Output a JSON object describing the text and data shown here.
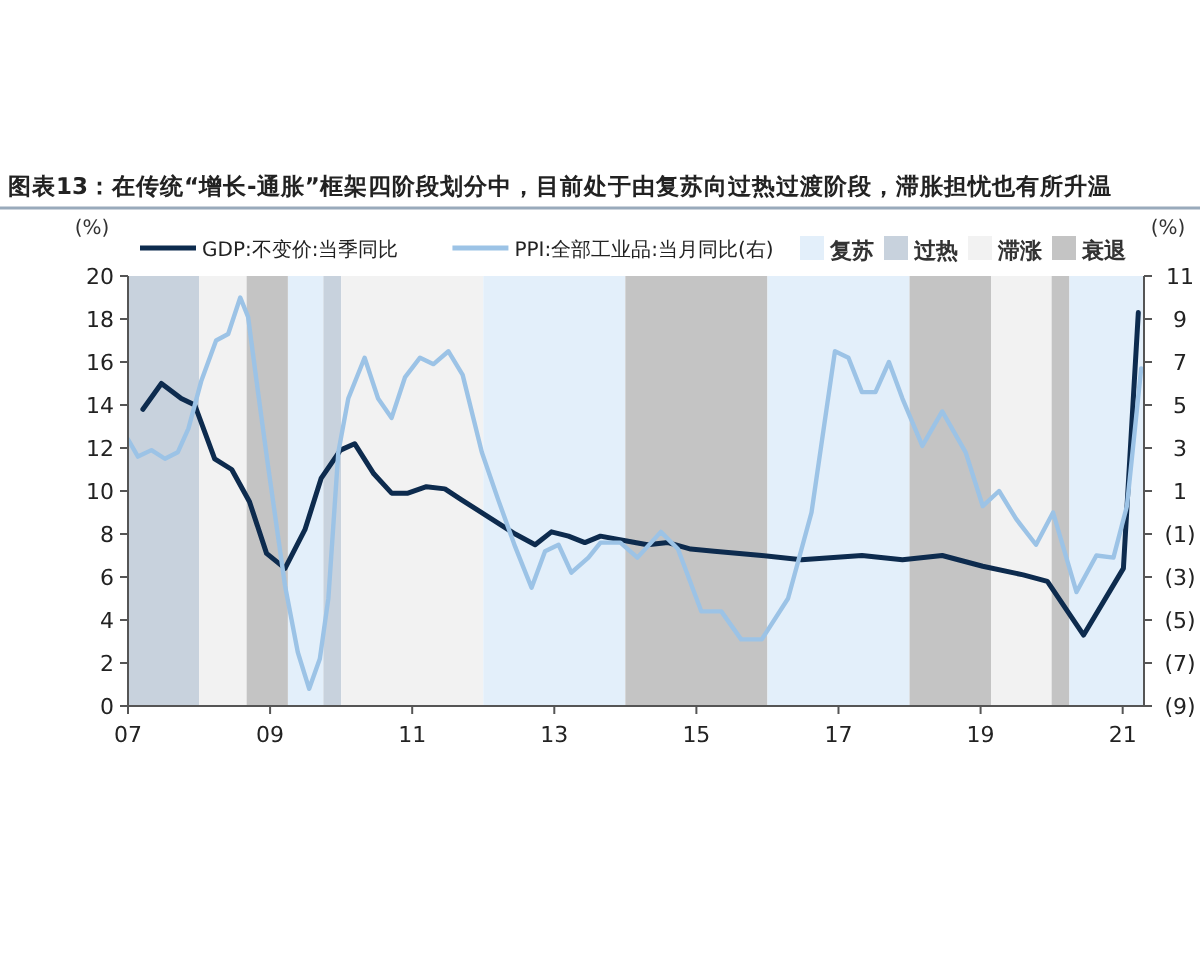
{
  "chart_data": {
    "type": "line",
    "title": "图表13：在传统“增长-通胀”框架四阶段划分中，目前处于由复苏向过热过渡阶段，滞胀担忧也有所升温",
    "ylabel": "(%)",
    "y2label": "(%)",
    "legend": "top",
    "grid": false,
    "xlim": [
      2007,
      2021.3
    ],
    "xticks": [
      {
        "value": 2007,
        "label": "07"
      },
      {
        "value": 2009,
        "label": "09"
      },
      {
        "value": 2011,
        "label": "11"
      },
      {
        "value": 2013,
        "label": "13"
      },
      {
        "value": 2015,
        "label": "15"
      },
      {
        "value": 2017,
        "label": "17"
      },
      {
        "value": 2019,
        "label": "19"
      },
      {
        "value": 2021,
        "label": "21"
      }
    ],
    "ylim": [
      0,
      20
    ],
    "yticks": [
      0,
      2,
      4,
      6,
      8,
      10,
      12,
      14,
      16,
      18,
      20
    ],
    "y2lim": [
      -9,
      11
    ],
    "y2ticks": [
      {
        "value": -9,
        "label": "(9)"
      },
      {
        "value": -7,
        "label": "(7)"
      },
      {
        "value": -5,
        "label": "(5)"
      },
      {
        "value": -3,
        "label": "(3)"
      },
      {
        "value": -1,
        "label": "(1)"
      },
      1,
      3,
      5,
      7,
      9,
      11
    ],
    "series": [
      {
        "name": "GDP:不变价:当季同比",
        "color": "#0d2b4e",
        "x": [
          2007.21,
          2007.47,
          2007.75,
          2007.94,
          2008.22,
          2008.46,
          2008.71,
          2008.95,
          2009.21,
          2009.49,
          2009.72,
          2009.99,
          2010.19,
          2010.46,
          2010.71,
          2010.94,
          2011.2,
          2011.46,
          2011.69,
          2012.45,
          2012.73,
          2012.96,
          2013.2,
          2013.43,
          2013.65,
          2013.98,
          2014.31,
          2014.6,
          2014.92,
          2015.25,
          2015.92,
          2016.48,
          2017.33,
          2017.9,
          2018.46,
          2019.03,
          2019.6,
          2019.94,
          2020.45,
          2021.01,
          2021.22
        ],
        "values": [
          13.8,
          15.0,
          14.3,
          14.0,
          11.5,
          11.0,
          9.5,
          7.1,
          6.4,
          8.2,
          10.6,
          11.9,
          12.2,
          10.8,
          9.9,
          9.9,
          10.2,
          10.1,
          9.6,
          8.0,
          7.5,
          8.1,
          7.9,
          7.6,
          7.9,
          7.7,
          7.5,
          7.6,
          7.3,
          7.2,
          7.0,
          6.8,
          7.0,
          6.8,
          7.0,
          6.5,
          6.1,
          5.8,
          3.3,
          6.4,
          18.3
        ]
      },
      {
        "name": "PPI:全部工业品:当月同比(右)",
        "color": "#9cc3e6",
        "axis": "y2",
        "x": [
          2007.0,
          2007.14,
          2007.33,
          2007.52,
          2007.7,
          2007.85,
          2008.03,
          2008.24,
          2008.41,
          2008.58,
          2008.69,
          2008.83,
          2008.97,
          2009.21,
          2009.39,
          2009.55,
          2009.7,
          2009.82,
          2009.96,
          2010.1,
          2010.33,
          2010.52,
          2010.71,
          2010.9,
          2011.11,
          2011.3,
          2011.51,
          2011.71,
          2011.98,
          2012.21,
          2012.45,
          2012.68,
          2012.87,
          2013.06,
          2013.24,
          2013.48,
          2013.65,
          2013.93,
          2014.17,
          2014.5,
          2014.74,
          2015.07,
          2015.35,
          2015.63,
          2015.92,
          2016.29,
          2016.62,
          2016.95,
          2017.14,
          2017.33,
          2017.52,
          2017.71,
          2017.9,
          2018.18,
          2018.46,
          2018.79,
          2019.03,
          2019.26,
          2019.5,
          2019.78,
          2020.02,
          2020.35,
          2020.63,
          2020.87,
          2021.06,
          2021.26
        ],
        "values": [
          3.4,
          2.6,
          2.9,
          2.5,
          2.8,
          3.9,
          6.1,
          8.0,
          8.3,
          10.0,
          9.1,
          5.6,
          2.2,
          -3.4,
          -6.5,
          -8.2,
          -6.8,
          -4.0,
          2.8,
          5.3,
          7.2,
          5.3,
          4.4,
          6.3,
          7.2,
          6.9,
          7.5,
          6.4,
          2.8,
          0.6,
          -1.6,
          -3.5,
          -1.8,
          -1.5,
          -2.8,
          -2.1,
          -1.4,
          -1.4,
          -2.1,
          -0.9,
          -1.7,
          -4.6,
          -4.6,
          -5.9,
          -5.9,
          -4.0,
          0,
          7.5,
          7.2,
          5.6,
          5.6,
          7.0,
          5.3,
          3.1,
          4.7,
          2.8,
          0.3,
          1.0,
          -0.3,
          -1.5,
          0,
          -3.7,
          -2.0,
          -2.1,
          0.3,
          6.7
        ]
      }
    ],
    "bands": [
      {
        "axis": "x",
        "from": 2009.25,
        "to": 2009.75,
        "label": "复苏",
        "color": "#e3effa"
      },
      {
        "axis": "x",
        "from": 2007,
        "to": 2008,
        "label": "过热",
        "color": "#c8d2dd"
      },
      {
        "axis": "x",
        "from": 2008,
        "to": 2008.67,
        "label": "滞涨",
        "color": "#f2f2f2"
      },
      {
        "axis": "x",
        "from": 2008.67,
        "to": 2009.25,
        "label": "衰退",
        "color": "#c4c4c4"
      },
      {
        "axis": "x",
        "from": 2009.75,
        "to": 2010,
        "color": "#c8d2dd"
      },
      {
        "axis": "x",
        "from": 2010,
        "to": 2012,
        "color": "#f2f2f2"
      },
      {
        "axis": "x",
        "from": 2012,
        "to": 2014,
        "color": "#e3effa"
      },
      {
        "axis": "x",
        "from": 2014,
        "to": 2016,
        "color": "#c4c4c4"
      },
      {
        "axis": "x",
        "from": 2016,
        "to": 2018,
        "color": "#e3effa"
      },
      {
        "axis": "x",
        "from": 2018,
        "to": 2019.15,
        "color": "#c4c4c4"
      },
      {
        "axis": "x",
        "from": 2019.15,
        "to": 2020,
        "color": "#f2f2f2"
      },
      {
        "axis": "x",
        "from": 2020,
        "to": 2020.25,
        "color": "#c4c4c4"
      },
      {
        "axis": "x",
        "from": 2020.25,
        "to": 2021.3,
        "color": "#e3effa"
      }
    ]
  }
}
